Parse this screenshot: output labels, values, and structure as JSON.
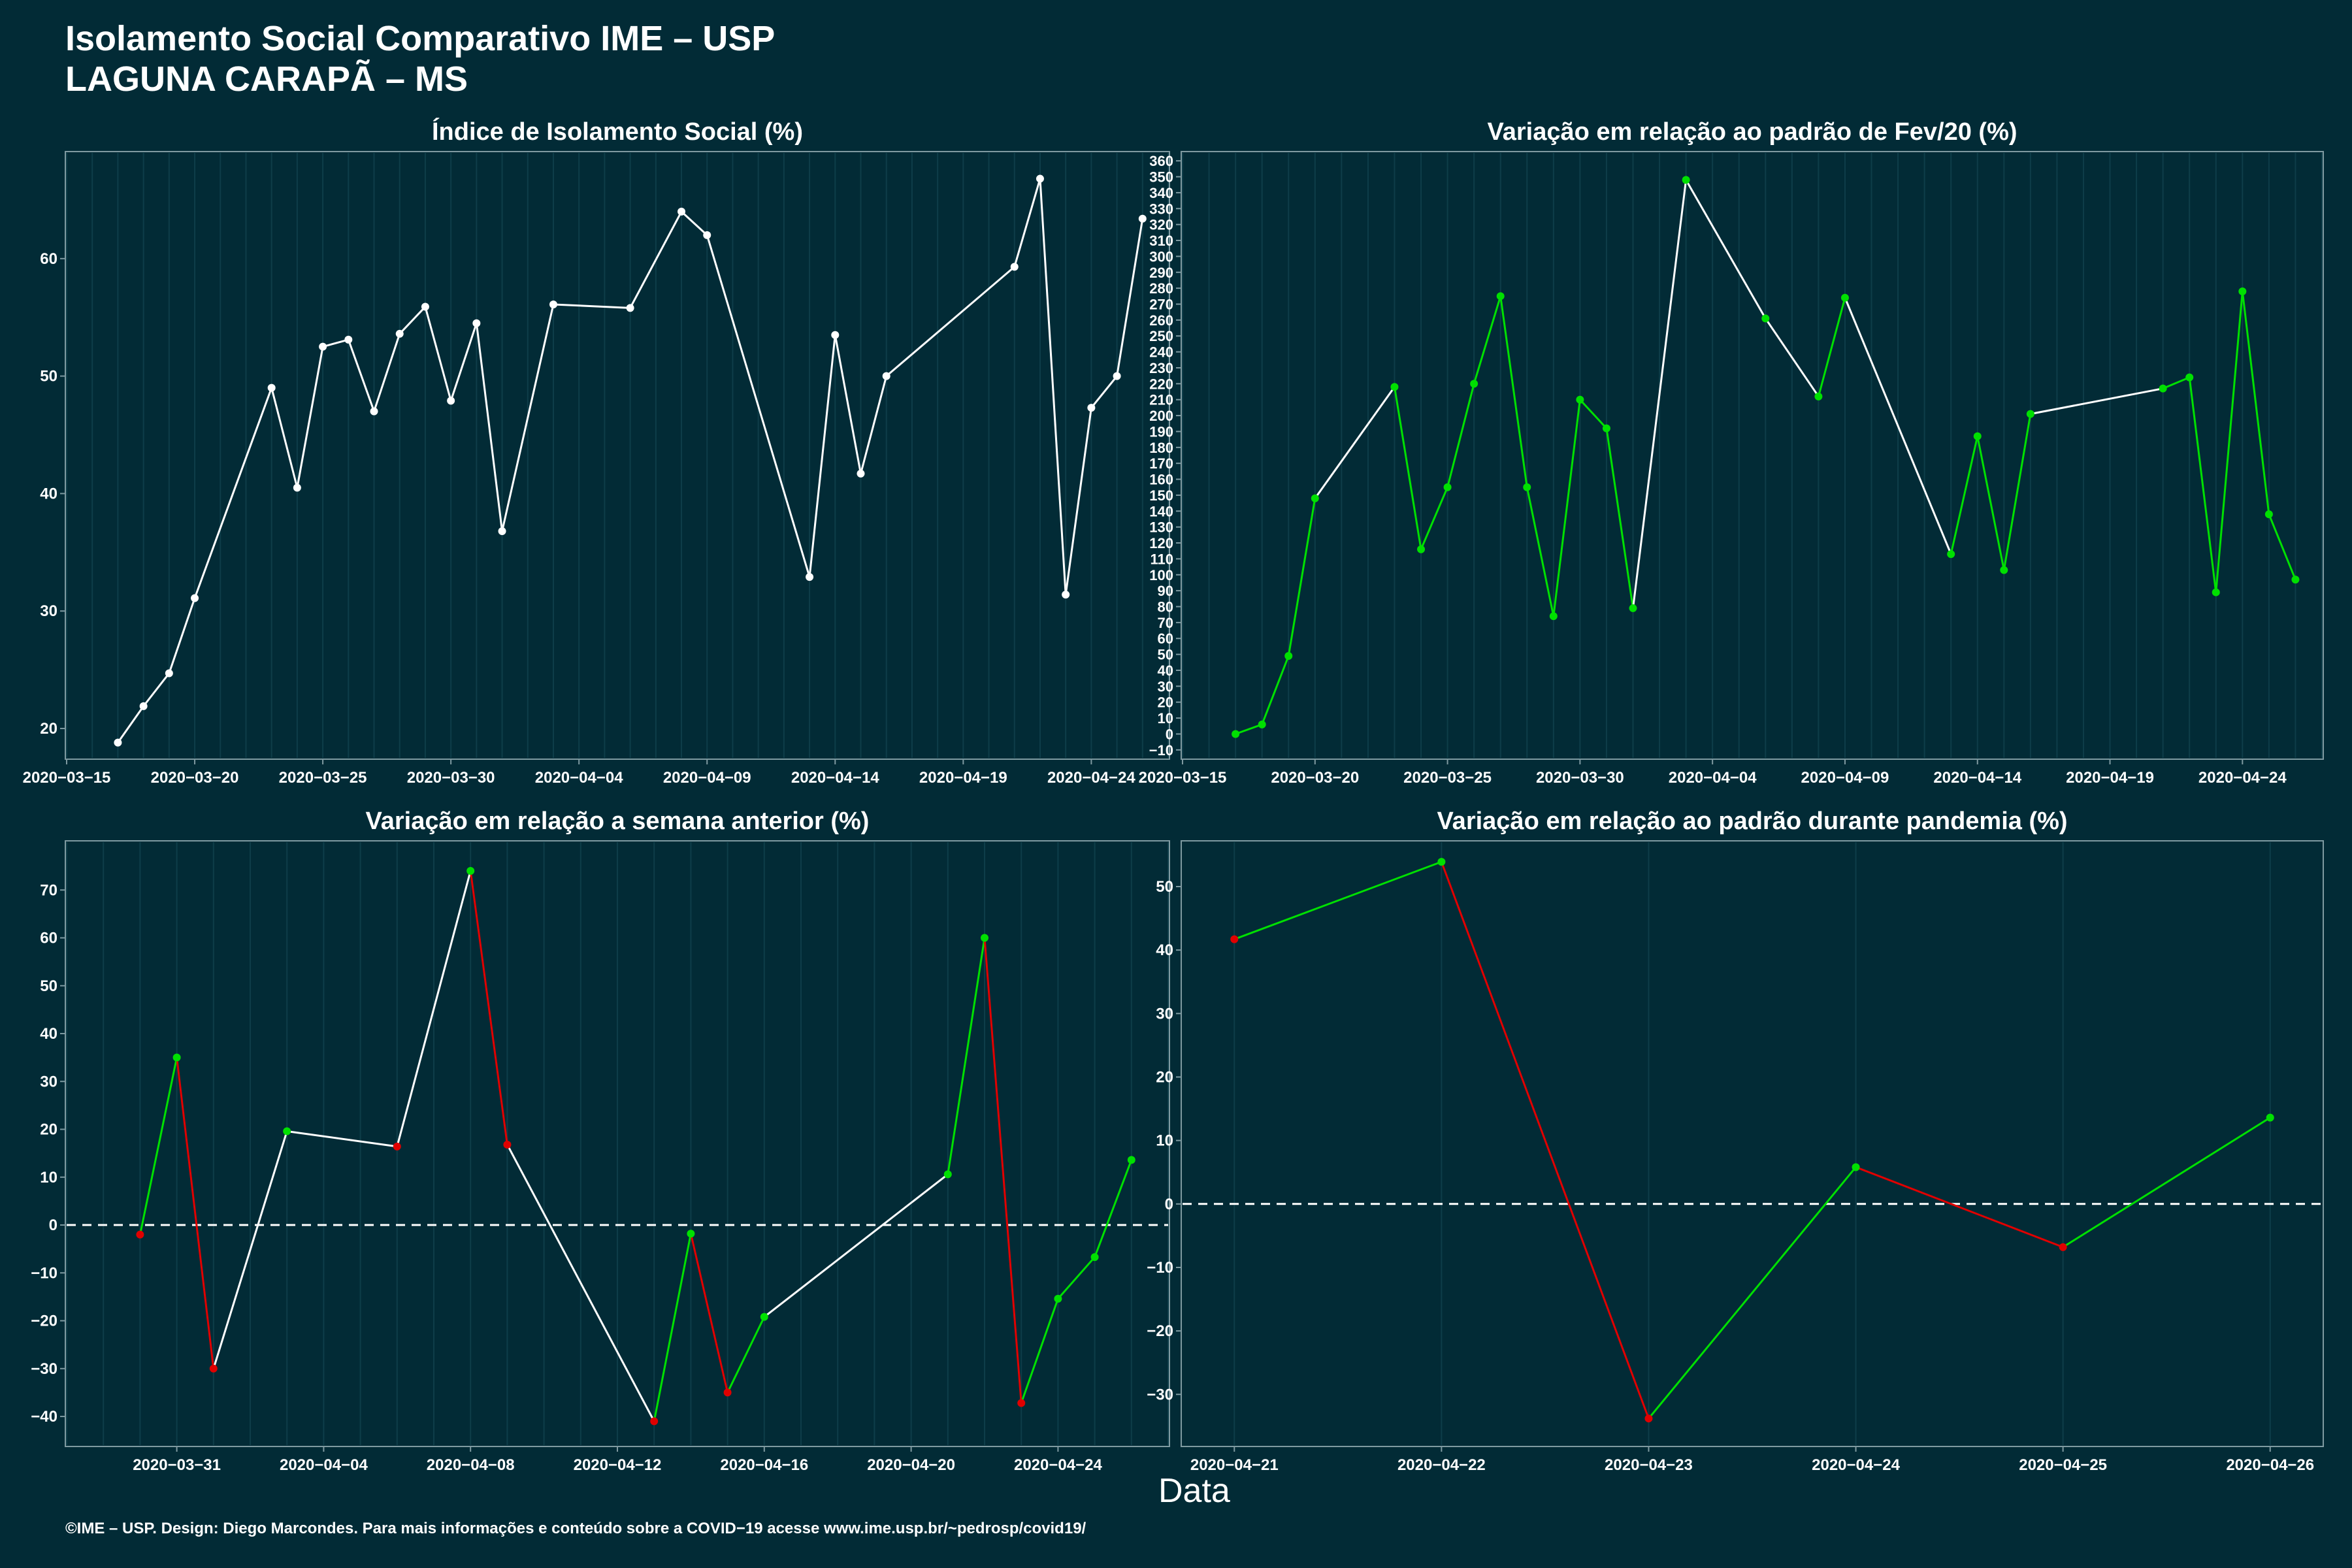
{
  "title_line1": "Isolamento Social Comparativo IME – USP",
  "title_line2": "LAGUNA CARAPÃ – MS",
  "xlabel": "Data",
  "footer": "©IME – USP. Design: Diego Marcondes. Para mais informações e conteúdo sobre a COVID−19 acesse www.ime.usp.br/~pedrosp/covid19/",
  "colors": {
    "background": "#022b36",
    "line": "#ffffff",
    "up": "#00e000",
    "down": "#e00000",
    "grid": "#0e3d49",
    "axis": "#7f9aa1"
  },
  "chart_data": [
    {
      "type": "line",
      "title": "Índice de Isolamento Social (%)",
      "xlabel": "",
      "ylabel": "",
      "x_type": "date",
      "xlim": [
        "2020-03-15",
        "2020-04-27"
      ],
      "ylim": [
        17.5,
        69
      ],
      "x_ticks": [
        "2020-03-15",
        "2020-03-20",
        "2020-03-25",
        "2020-03-30",
        "2020-04-04",
        "2020-04-09",
        "2020-04-14",
        "2020-04-19",
        "2020-04-24"
      ],
      "y_ticks": [
        20,
        30,
        40,
        50,
        60
      ],
      "point_color": "#ffffff",
      "series": [
        {
          "x": [
            "2020-03-17",
            "2020-03-18",
            "2020-03-19",
            "2020-03-20",
            "2020-03-23",
            "2020-03-24",
            "2020-03-25",
            "2020-03-26",
            "2020-03-27",
            "2020-03-28",
            "2020-03-29",
            "2020-03-30",
            "2020-03-31",
            "2020-04-01",
            "2020-04-03",
            "2020-04-06",
            "2020-04-08",
            "2020-04-09",
            "2020-04-13",
            "2020-04-14",
            "2020-04-15",
            "2020-04-16",
            "2020-04-21",
            "2020-04-22",
            "2020-04-23",
            "2020-04-24",
            "2020-04-25",
            "2020-04-26"
          ],
          "values": [
            18.8,
            21.9,
            24.7,
            31.1,
            49.0,
            40.5,
            52.5,
            53.1,
            47.0,
            53.6,
            55.9,
            47.9,
            54.5,
            36.8,
            56.1,
            55.8,
            64.0,
            62.0,
            32.9,
            53.5,
            41.7,
            50.0,
            59.3,
            66.8,
            31.4,
            47.3,
            50.0,
            63.4
          ]
        }
      ]
    },
    {
      "type": "line",
      "title": "Variação em relação ao padrão de Fev/20 (%)",
      "xlabel": "",
      "ylabel": "",
      "x_type": "date",
      "xlim": [
        "2020-03-15",
        "2020-04-27"
      ],
      "ylim": [
        -15,
        365
      ],
      "x_ticks": [
        "2020-03-15",
        "2020-03-20",
        "2020-03-25",
        "2020-03-30",
        "2020-04-04",
        "2020-04-09",
        "2020-04-14",
        "2020-04-19",
        "2020-04-24"
      ],
      "y_ticks": [
        -10,
        0,
        10,
        20,
        30,
        40,
        50,
        60,
        70,
        80,
        90,
        100,
        110,
        120,
        130,
        140,
        150,
        160,
        170,
        180,
        190,
        200,
        210,
        220,
        230,
        240,
        250,
        260,
        270,
        280,
        290,
        300,
        310,
        320,
        330,
        340,
        350,
        360
      ],
      "point_color": "#00e000",
      "series": [
        {
          "x": [
            "2020-03-17",
            "2020-03-18",
            "2020-03-19",
            "2020-03-20",
            "2020-03-23",
            "2020-03-24",
            "2020-03-25",
            "2020-03-26",
            "2020-03-27",
            "2020-03-28",
            "2020-03-29",
            "2020-03-30",
            "2020-03-31",
            "2020-04-01",
            "2020-04-03",
            "2020-04-06",
            "2020-04-08",
            "2020-04-09",
            "2020-04-13",
            "2020-04-14",
            "2020-04-15",
            "2020-04-16",
            "2020-04-21",
            "2020-04-22",
            "2020-04-23",
            "2020-04-24",
            "2020-04-25",
            "2020-04-26"
          ],
          "values": [
            0,
            6,
            49,
            148,
            218,
            116,
            155,
            220,
            275,
            155,
            74,
            210,
            192,
            79,
            348,
            261,
            212,
            274,
            113,
            187,
            103,
            201,
            217,
            224,
            89,
            278,
            138,
            97
          ]
        }
      ]
    },
    {
      "type": "line",
      "title": "Variação em relação a semana anterior (%)",
      "xlabel": "",
      "ylabel": "",
      "x_type": "date",
      "xlim": [
        "2020-03-28",
        "2020-04-27"
      ],
      "ylim": [
        -46,
        80
      ],
      "x_ticks": [
        "2020-03-31",
        "2020-04-04",
        "2020-04-08",
        "2020-04-12",
        "2020-04-16",
        "2020-04-20",
        "2020-04-24"
      ],
      "y_ticks": [
        -40,
        -30,
        -20,
        -10,
        0,
        10,
        20,
        30,
        40,
        50,
        60,
        70
      ],
      "reference_line": 0,
      "series": [
        {
          "x": [
            "2020-03-30",
            "2020-03-31",
            "2020-04-01",
            "2020-04-03",
            "2020-04-06",
            "2020-04-08",
            "2020-04-09",
            "2020-04-13",
            "2020-04-14",
            "2020-04-15",
            "2020-04-16",
            "2020-04-21",
            "2020-04-22",
            "2020-04-23",
            "2020-04-24",
            "2020-04-25",
            "2020-04-26"
          ],
          "values": [
            -2.0,
            35.0,
            -30.0,
            19.6,
            16.4,
            74.0,
            16.8,
            -41.0,
            -1.8,
            -35.0,
            -19.2,
            10.6,
            60.0,
            -37.2,
            -15.4,
            -6.7,
            13.6
          ]
        }
      ]
    },
    {
      "type": "line",
      "title": "Variação em relação ao padrão durante pandemia (%)",
      "xlabel": "",
      "ylabel": "",
      "x_type": "date",
      "xlim": [
        "2020-04-20.75",
        "2020-04-26.25"
      ],
      "ylim": [
        -38,
        57
      ],
      "x_ticks": [
        "2020-04-21",
        "2020-04-22",
        "2020-04-23",
        "2020-04-24",
        "2020-04-25",
        "2020-04-26"
      ],
      "y_ticks": [
        -30,
        -20,
        -10,
        0,
        10,
        20,
        30,
        40,
        50
      ],
      "reference_line": 0,
      "series": [
        {
          "x": [
            "2020-04-21",
            "2020-04-22",
            "2020-04-23",
            "2020-04-24",
            "2020-04-25",
            "2020-04-26"
          ],
          "values": [
            41.7,
            53.9,
            -33.8,
            5.8,
            -6.8,
            13.6
          ]
        }
      ]
    }
  ]
}
